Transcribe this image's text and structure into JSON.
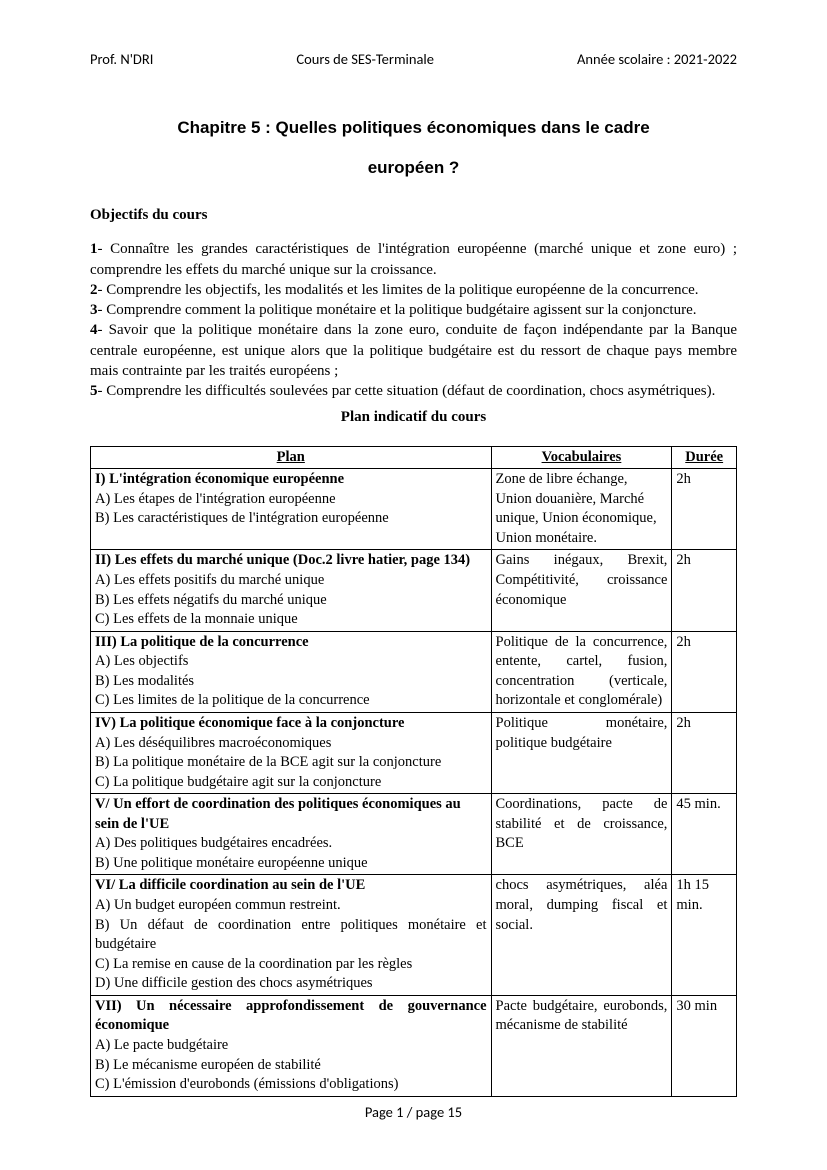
{
  "header": {
    "left": "Prof. N'DRI",
    "center": "Cours de SES-Terminale",
    "right": "Année scolaire : 2021-2022"
  },
  "title_line1": "Chapitre 5 : Quelles politiques économiques dans le cadre",
  "title_line2": "européen ?",
  "objectives_heading": "Objectifs du cours",
  "objectives": [
    {
      "num": "1",
      "text": "- Connaître les grandes caractéristiques de l'intégration européenne (marché unique et zone euro) ; comprendre les effets du marché unique sur la croissance."
    },
    {
      "num": "2",
      "text": "- Comprendre les objectifs, les modalités et les limites de la politique européenne de la concurrence."
    },
    {
      "num": "3",
      "text": "- Comprendre comment la politique monétaire et la politique budgétaire agissent sur la conjoncture."
    },
    {
      "num": "4",
      "text": "- Savoir que la politique monétaire dans la zone euro, conduite de façon indépendante par la Banque centrale européenne, est unique alors que la politique budgétaire est du ressort de chaque pays membre mais contrainte par les traités européens ;"
    },
    {
      "num": "5",
      "text": "- Comprendre les difficultés soulevées par cette situation (défaut de coordination, chocs asymétriques)."
    }
  ],
  "plan_heading": "Plan indicatif du cours",
  "table": {
    "columns": [
      "Plan",
      "Vocabulaires",
      "Durée"
    ],
    "rows": [
      {
        "plan_title": "I) L'intégration économique européenne",
        "plan_subs": [
          "A) Les étapes de l'intégration européenne",
          "B) Les caractéristiques de l'intégration européenne"
        ],
        "vocab": "Zone de libre échange, Union douanière, Marché unique, Union économique, Union monétaire.",
        "vocab_justify": false,
        "duree": "2h"
      },
      {
        "plan_title": "II) Les effets du marché unique (Doc.2 livre hatier, page 134)",
        "plan_subs": [
          "A) Les effets positifs du marché unique",
          "B) Les effets négatifs du marché unique",
          "C) Les effets de la monnaie unique"
        ],
        "vocab": "Gains inégaux, Brexit, Compétitivité, croissance économique",
        "vocab_justify": true,
        "duree": "2h"
      },
      {
        "plan_title": "III) La politique de la concurrence",
        "plan_subs": [
          "A) Les objectifs",
          "B) Les modalités",
          "C) Les limites de la politique de la concurrence"
        ],
        "vocab": "Politique de la concurrence, entente, cartel, fusion, concentration (verticale, horizontale et conglomérale)",
        "vocab_justify": true,
        "duree": "2h"
      },
      {
        "plan_title": "IV) La politique économique face à la conjoncture",
        "plan_subs": [
          "A) Les déséquilibres macroéconomiques",
          "B) La politique monétaire de la BCE agit sur la conjoncture",
          "C) La politique budgétaire agit sur la conjoncture"
        ],
        "vocab": "Politique monétaire, politique budgétaire",
        "vocab_justify": true,
        "duree": "2h"
      },
      {
        "plan_title": "V/ Un effort de coordination des politiques économiques au sein de l'UE",
        "plan_subs": [
          "A) Des politiques budgétaires encadrées.",
          "B) Une politique monétaire européenne unique"
        ],
        "vocab": "Coordinations, pacte de stabilité et de croissance, BCE",
        "vocab_justify": true,
        "duree": "45 min."
      },
      {
        "plan_title": "VI/ La difficile coordination au sein de l'UE",
        "plan_title_justify": false,
        "plan_subs": [
          "A) Un budget européen commun restreint.",
          "B) Un défaut de coordination entre politiques monétaire et budgétaire",
          "C) La remise en cause de la coordination par les règles",
          "D) Une difficile gestion des chocs asymétriques"
        ],
        "plan_subs_justify": [
          false,
          true,
          false,
          false
        ],
        "vocab": "chocs asymétriques, aléa moral, dumping fiscal et social.",
        "vocab_justify": true,
        "duree": "1h 15 min."
      },
      {
        "plan_title": "VII) Un nécessaire approfondissement de gouvernance économique",
        "plan_title_justify": true,
        "plan_subs": [
          "A) Le pacte budgétaire",
          "B) Le mécanisme européen de stabilité",
          "C) L'émission d'eurobonds (émissions d'obligations)"
        ],
        "vocab": "Pacte budgétaire, eurobonds, mécanisme de stabilité",
        "vocab_justify": true,
        "duree": "30 min"
      }
    ]
  },
  "footer": "Page 1 / page 15"
}
